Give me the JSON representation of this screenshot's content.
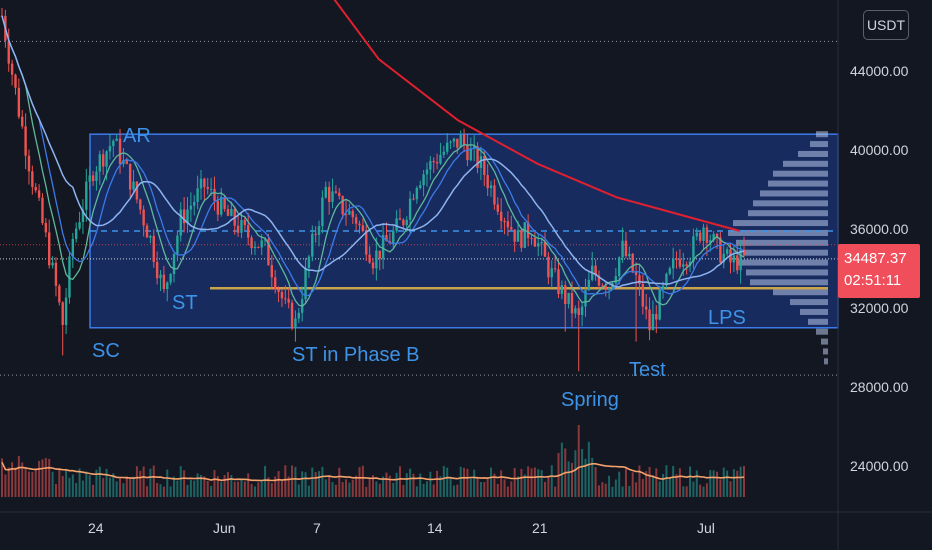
{
  "currency_badge": "USDT",
  "current_price": "34487.37",
  "countdown": "02:51:11",
  "colors": {
    "background": "#131722",
    "range_box_fill": "#2962ff",
    "range_box_border": "#3b7be8",
    "ma_red": "#e0202f",
    "ma_blue": "#8db4f0",
    "ma_green": "#5fb89a",
    "support_line": "#c9a44a",
    "volume_ma": "#f5a26b",
    "candle_up": "#26a69a",
    "candle_down": "#ef5350",
    "price_tag": "#f04e5a",
    "annotation": "#3d93e8"
  },
  "chart_data": {
    "type": "candlestick",
    "x_tick_labels": [
      "24",
      "24",
      "Jun",
      "7",
      "14",
      "21",
      "Jul"
    ],
    "y_tick_labels": [
      "44000.00",
      "40000.00",
      "36000.00",
      "32000.00",
      "28000.00",
      "24000.00"
    ],
    "y_ticks": [
      44000,
      40000,
      36000,
      32000,
      28000,
      24000
    ],
    "ylim": [
      21500,
      46500
    ],
    "grid": false,
    "annotations": [
      "AR",
      "ST",
      "SC",
      "ST in Phase B",
      "Spring",
      "Test",
      "LPS"
    ],
    "trading_range": {
      "low": 31000,
      "high": 40800
    },
    "dashed_level": 35900,
    "support_level": 33000,
    "dotted_levels": [
      45500,
      28600
    ],
    "close_price": 34487.37,
    "key_points": [
      {
        "label": "SC",
        "price": 31000
      },
      {
        "label": "AR",
        "price": 40700
      },
      {
        "label": "ST",
        "price": 32600
      },
      {
        "label": "ST in Phase B",
        "price": 31000
      },
      {
        "label": "Spring",
        "price": 28600
      },
      {
        "label": "Test",
        "price": 30300
      },
      {
        "label": "LPS",
        "price": 32800
      }
    ],
    "ma200_path": [
      {
        "bar": 0,
        "price": 58000
      },
      {
        "bar": 20,
        "price": 50000
      },
      {
        "bar": 40,
        "price": 44600
      },
      {
        "bar": 60,
        "price": 41500
      },
      {
        "bar": 80,
        "price": 39300
      },
      {
        "bar": 100,
        "price": 37600
      },
      {
        "bar": 120,
        "price": 36500
      },
      {
        "bar": 131,
        "price": 35900
      }
    ],
    "volume_profile": [
      {
        "price": 40800,
        "volume": 0.12
      },
      {
        "price": 40300,
        "volume": 0.18
      },
      {
        "price": 39800,
        "volume": 0.3
      },
      {
        "price": 39300,
        "volume": 0.45
      },
      {
        "price": 38800,
        "volume": 0.55
      },
      {
        "price": 38300,
        "volume": 0.6
      },
      {
        "price": 37800,
        "volume": 0.68
      },
      {
        "price": 37300,
        "volume": 0.75
      },
      {
        "price": 36800,
        "volume": 0.8
      },
      {
        "price": 36300,
        "volume": 0.95
      },
      {
        "price": 35800,
        "volume": 1.0
      },
      {
        "price": 35300,
        "volume": 0.92
      },
      {
        "price": 34800,
        "volume": 0.85
      },
      {
        "price": 34300,
        "volume": 0.9
      },
      {
        "price": 33800,
        "volume": 0.82
      },
      {
        "price": 33300,
        "volume": 0.78
      },
      {
        "price": 32800,
        "volume": 0.55
      },
      {
        "price": 32300,
        "volume": 0.38
      },
      {
        "price": 31800,
        "volume": 0.28
      },
      {
        "price": 31300,
        "volume": 0.2
      },
      {
        "price": 30800,
        "volume": 0.12
      },
      {
        "price": 30300,
        "volume": 0.07
      },
      {
        "price": 29800,
        "volume": 0.05
      },
      {
        "price": 29300,
        "volume": 0.04
      }
    ]
  }
}
